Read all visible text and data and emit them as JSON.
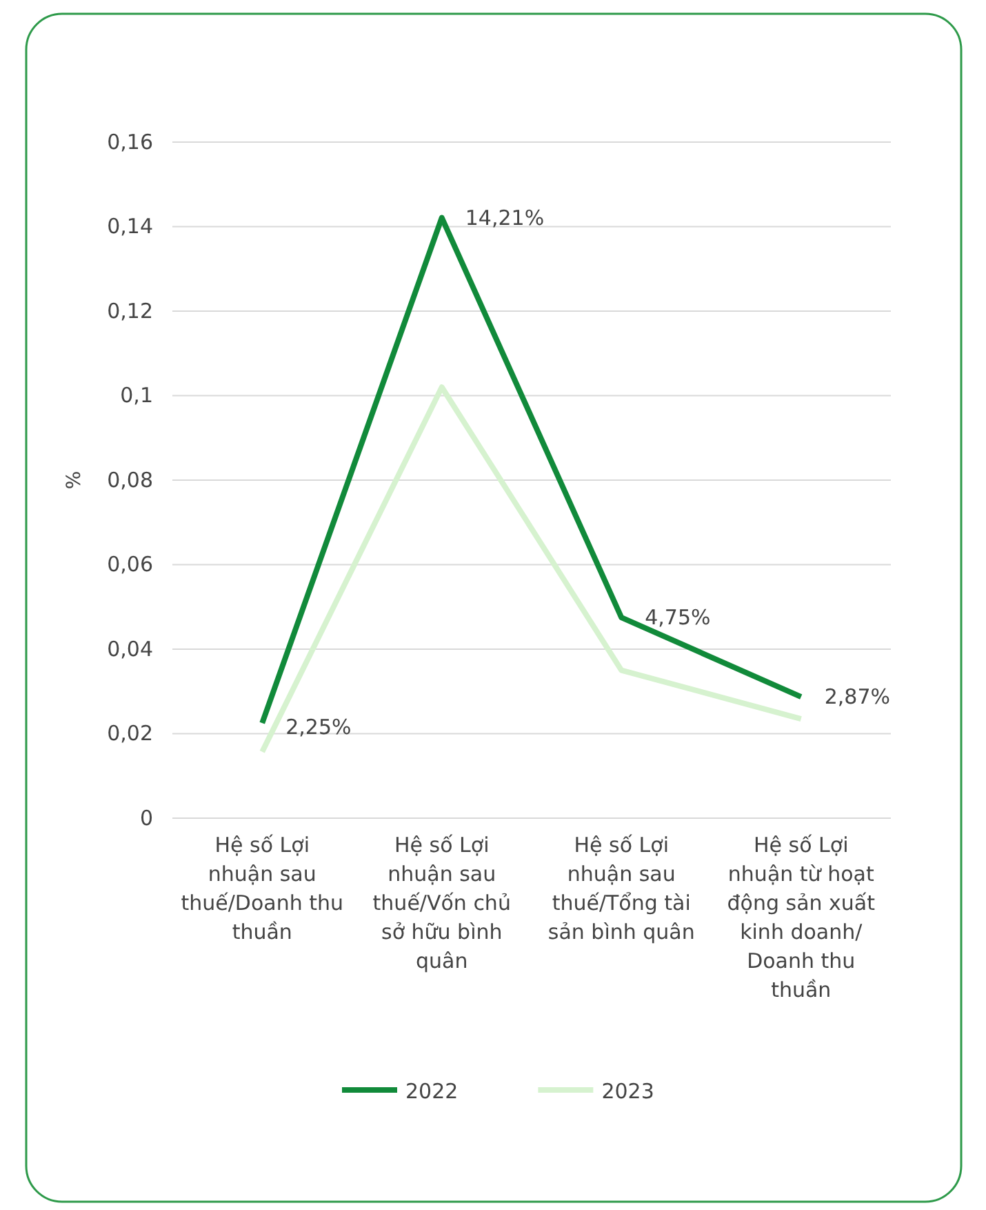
{
  "chart_data": {
    "type": "line",
    "ylabel": "%",
    "categories": [
      "Hệ số Lợi nhuận sau thuế/Doanh thu thuần",
      "Hệ số Lợi nhuận sau thuế/Vốn chủ sở hữu bình quân",
      "Hệ số Lợi nhuận sau thuế/Tổng tài sản bình quân",
      "Hệ số Lợi nhuận từ hoạt động sản xuất kinh doanh/ Doanh thu thuần"
    ],
    "series": [
      {
        "name": "2022",
        "color": "#118a3a",
        "values": [
          0.0225,
          0.1421,
          0.0475,
          0.0287
        ],
        "value_labels": [
          "2,25%",
          "14,21%",
          "4,75%",
          "2,87%"
        ]
      },
      {
        "name": "2023",
        "color": "#d6f2cf",
        "values": [
          0.0157,
          0.102,
          0.035,
          0.0235
        ]
      }
    ],
    "ylim": [
      0,
      0.16
    ],
    "yticks": [
      {
        "value": 0,
        "label": "0"
      },
      {
        "value": 0.02,
        "label": "0,02"
      },
      {
        "value": 0.04,
        "label": "0,04"
      },
      {
        "value": 0.06,
        "label": "0,06"
      },
      {
        "value": 0.08,
        "label": "0,08"
      },
      {
        "value": 0.1,
        "label": "0,1"
      },
      {
        "value": 0.12,
        "label": "0,12"
      },
      {
        "value": 0.14,
        "label": "0,14"
      },
      {
        "value": 0.16,
        "label": "0,16"
      }
    ],
    "grid": "y",
    "legend": "bottom",
    "marker": "none",
    "line_style": "solid"
  }
}
